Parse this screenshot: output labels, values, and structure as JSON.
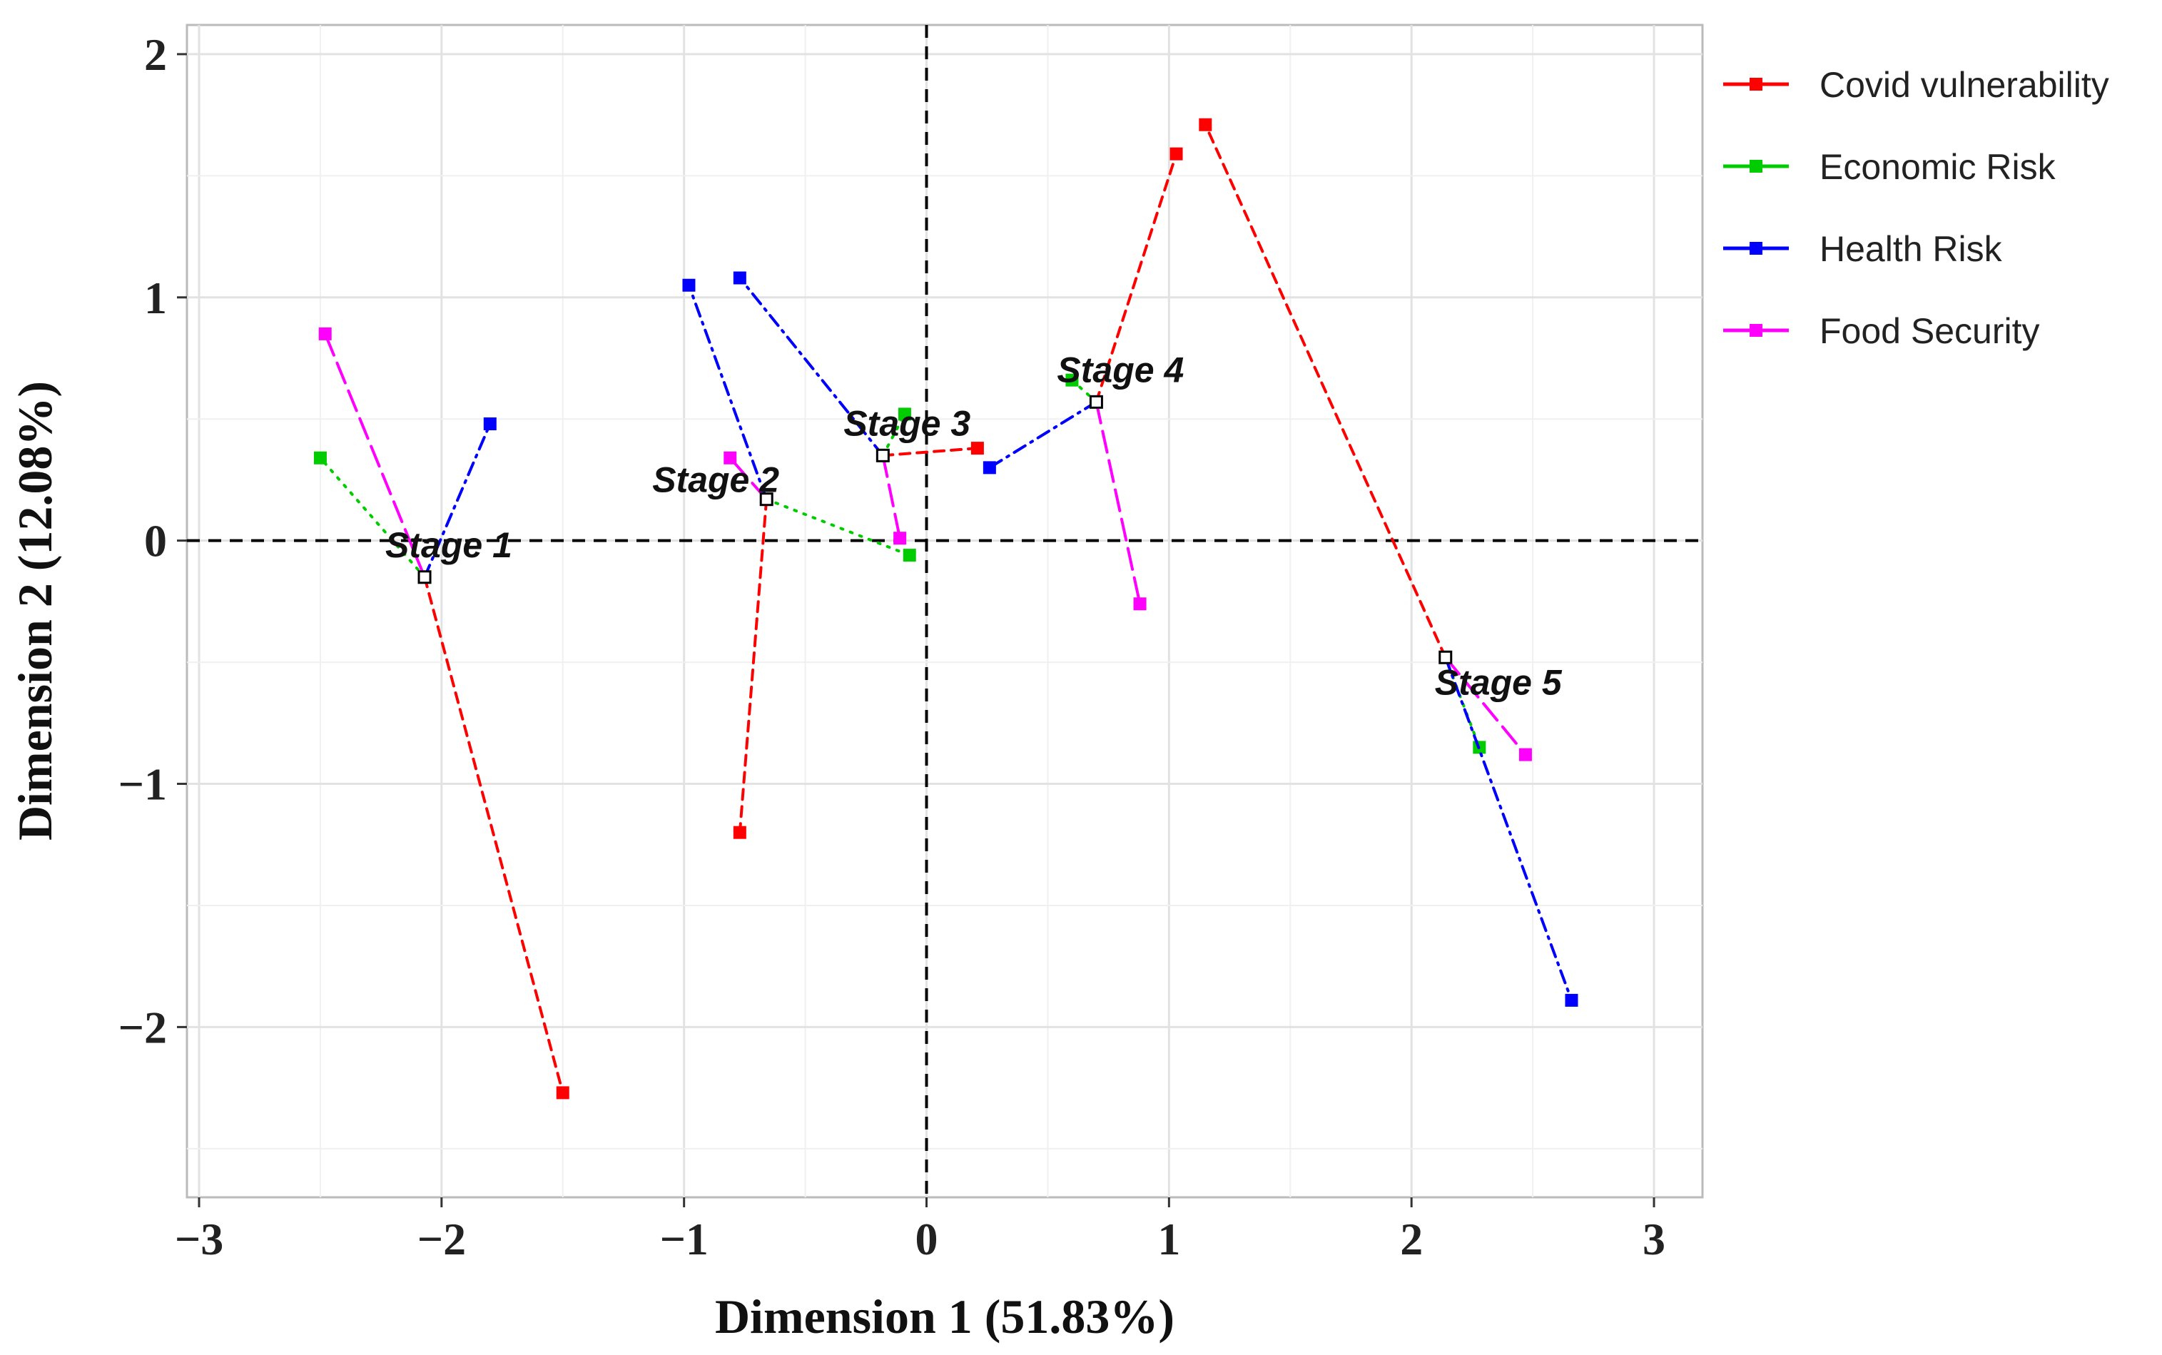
{
  "chart_data": {
    "type": "scatter",
    "title": "",
    "xlabel": "Dimension 1 (51.83%)",
    "ylabel": "Dimension 2 (12.08%)",
    "xlim": [
      -3.05,
      3.2
    ],
    "ylim": [
      -2.7,
      2.12
    ],
    "x_ticks": [
      -3,
      -2,
      -1,
      0,
      1,
      2,
      3
    ],
    "y_ticks": [
      -2,
      -1,
      0,
      1,
      2
    ],
    "grid": true,
    "reference_lines": {
      "x": 0,
      "y": 0,
      "style": "dashed"
    },
    "legend_position": "right",
    "stages": [
      {
        "name": "Stage  1",
        "x": -2.07,
        "y": -0.15
      },
      {
        "name": "Stage  2",
        "x": -0.66,
        "y": 0.17
      },
      {
        "name": "Stage  3",
        "x": -0.18,
        "y": 0.35
      },
      {
        "name": "Stage  4",
        "x": 0.7,
        "y": 0.57
      },
      {
        "name": "Stage  5",
        "x": 2.14,
        "y": -0.48
      }
    ],
    "series": [
      {
        "name": "Covid vulnerability",
        "color": "#ff0000",
        "dash": "dashed",
        "points": [
          [
            -1.5,
            -2.27
          ],
          [
            -0.77,
            -1.2
          ],
          [
            0.21,
            0.38
          ],
          [
            1.03,
            1.59
          ],
          [
            1.15,
            1.71
          ]
        ]
      },
      {
        "name": "Economic Risk",
        "color": "#00cc00",
        "dash": "dotted",
        "points": [
          [
            -2.5,
            0.34
          ],
          [
            -0.07,
            -0.06
          ],
          [
            -0.09,
            0.52
          ],
          [
            0.6,
            0.66
          ],
          [
            2.28,
            -0.85
          ]
        ]
      },
      {
        "name": "Health Risk",
        "color": "#0000ff",
        "dash": "dashdot",
        "points": [
          [
            -1.8,
            0.48
          ],
          [
            -0.98,
            1.05
          ],
          [
            -0.77,
            1.08
          ],
          [
            0.26,
            0.3
          ],
          [
            2.66,
            -1.89
          ]
        ]
      },
      {
        "name": "Food Security",
        "color": "#ff00ff",
        "dash": "longdash",
        "points": [
          [
            -2.48,
            0.85
          ],
          [
            -0.81,
            0.34
          ],
          [
            -0.11,
            0.01
          ],
          [
            0.88,
            -0.26
          ],
          [
            2.47,
            -0.88
          ]
        ]
      }
    ]
  }
}
